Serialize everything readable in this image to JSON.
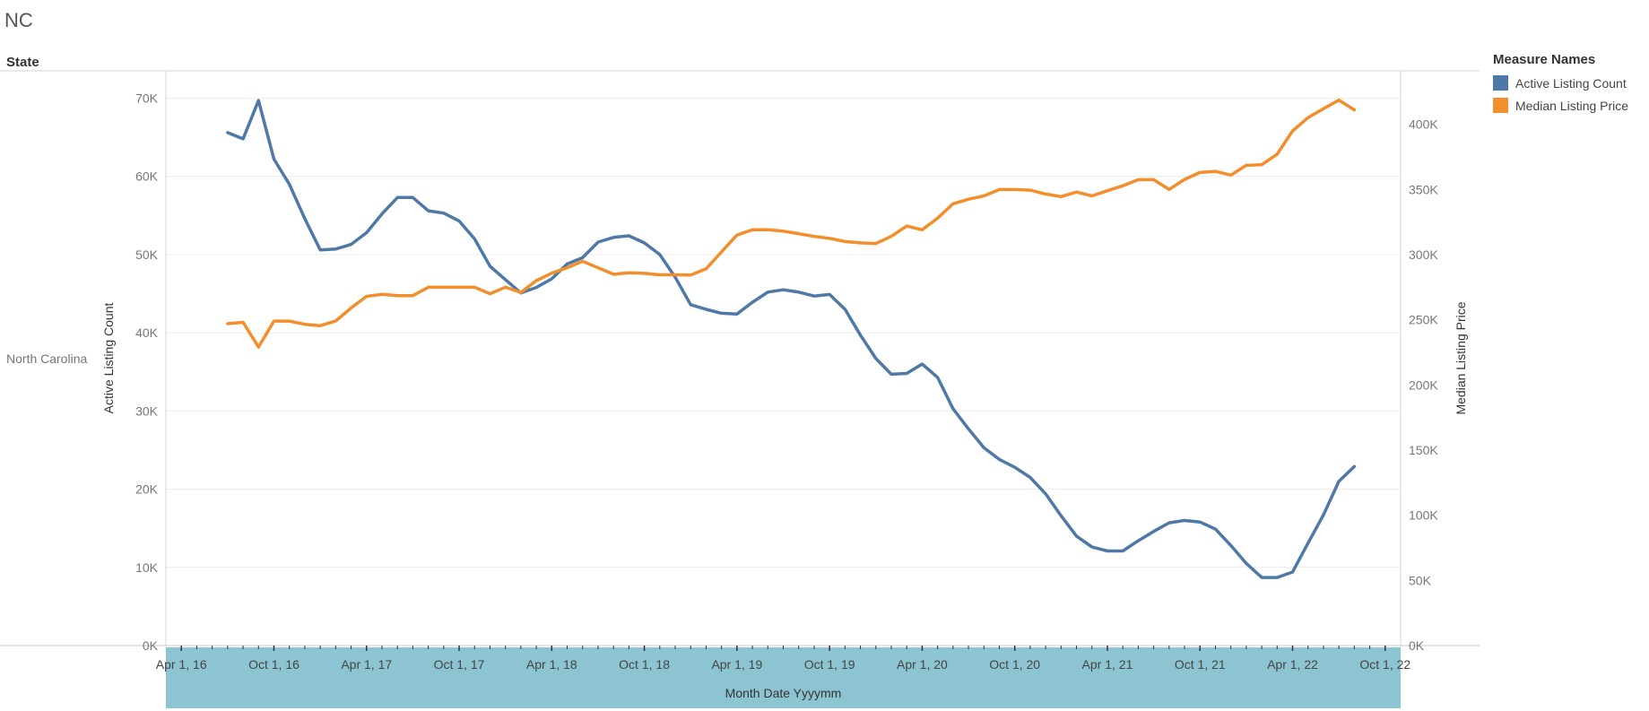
{
  "sheet": {
    "title": "NC",
    "row_header": "State",
    "row_value": "North Carolina"
  },
  "legend": {
    "title": "Measure Names",
    "items": [
      {
        "label": "Active Listing Count",
        "color": "#4e79a7"
      },
      {
        "label": "Median Listing Price",
        "color": "#f28e2b"
      }
    ]
  },
  "axis_band_color": "#8cc4d2",
  "chart_data": {
    "type": "line",
    "xlabel": "Month Date Yyyymm",
    "x": [
      "2016-07",
      "2016-08",
      "2016-09",
      "2016-10",
      "2016-11",
      "2016-12",
      "2017-01",
      "2017-02",
      "2017-03",
      "2017-04",
      "2017-05",
      "2017-06",
      "2017-07",
      "2017-08",
      "2017-09",
      "2017-10",
      "2017-11",
      "2017-12",
      "2018-01",
      "2018-02",
      "2018-03",
      "2018-04",
      "2018-05",
      "2018-06",
      "2018-07",
      "2018-08",
      "2018-09",
      "2018-10",
      "2018-11",
      "2018-12",
      "2019-01",
      "2019-02",
      "2019-03",
      "2019-04",
      "2019-05",
      "2019-06",
      "2019-07",
      "2019-08",
      "2019-09",
      "2019-10",
      "2019-11",
      "2019-12",
      "2020-01",
      "2020-02",
      "2020-03",
      "2020-04",
      "2020-05",
      "2020-06",
      "2020-07",
      "2020-08",
      "2020-09",
      "2020-10",
      "2020-11",
      "2020-12",
      "2021-01",
      "2021-02",
      "2021-03",
      "2021-04",
      "2021-05",
      "2021-06",
      "2021-07",
      "2021-08",
      "2021-09",
      "2021-10",
      "2021-11",
      "2021-12",
      "2022-01",
      "2022-02",
      "2022-03",
      "2022-04",
      "2022-05",
      "2022-06",
      "2022-07",
      "2022-08"
    ],
    "x_ticks": [
      "Apr 1, 16",
      "Oct 1, 16",
      "Apr 1, 17",
      "Oct 1, 17",
      "Apr 1, 18",
      "Oct 1, 18",
      "Apr 1, 19",
      "Oct 1, 19",
      "Apr 1, 20",
      "Oct 1, 20",
      "Apr 1, 21",
      "Oct 1, 21",
      "Apr 1, 22",
      "Oct 1, 22"
    ],
    "x_tick_dates": [
      "2016-04",
      "2016-10",
      "2017-04",
      "2017-10",
      "2018-04",
      "2018-10",
      "2019-04",
      "2019-10",
      "2020-04",
      "2020-10",
      "2021-04",
      "2021-10",
      "2022-04",
      "2022-10"
    ],
    "x_range": [
      "2016-03",
      "2022-11"
    ],
    "series": [
      {
        "name": "Active Listing Count",
        "axis": "left",
        "ylabel": "Active Listing Count",
        "ylim": [
          0,
          73500
        ],
        "ticks": [
          0,
          10000,
          20000,
          30000,
          40000,
          50000,
          60000,
          70000
        ],
        "tick_labels": [
          "0K",
          "10K",
          "20K",
          "30K",
          "40K",
          "50K",
          "60K",
          "70K"
        ],
        "color": "#4e79a7",
        "values": [
          65600,
          64800,
          69700,
          62200,
          59000,
          54600,
          50600,
          50700,
          51300,
          52800,
          55200,
          57300,
          57300,
          55600,
          55300,
          54300,
          52000,
          48500,
          46800,
          45100,
          45800,
          46900,
          48800,
          49600,
          51600,
          52200,
          52400,
          51500,
          50000,
          47100,
          43600,
          43000,
          42500,
          42400,
          43900,
          45200,
          45500,
          45200,
          44700,
          44900,
          43000,
          39700,
          36700,
          34700,
          34800,
          36000,
          34300,
          30300,
          27700,
          25300,
          23800,
          22800,
          21500,
          19400,
          16600,
          14000,
          12600,
          12100,
          12100,
          13400,
          14600,
          15700,
          16000,
          15800,
          14900,
          12800,
          10500,
          8700,
          8700,
          9400,
          13100,
          16700,
          21000,
          22900
        ]
      },
      {
        "name": "Median Listing Price",
        "axis": "right",
        "ylabel": "Median Listing Price",
        "ylim": [
          0,
          441000
        ],
        "ticks": [
          0,
          50000,
          100000,
          150000,
          200000,
          250000,
          300000,
          350000,
          400000
        ],
        "tick_labels": [
          "0K",
          "50K",
          "100K",
          "150K",
          "200K",
          "250K",
          "300K",
          "350K",
          "400K"
        ],
        "color": "#f28e2b",
        "values": [
          247000,
          248000,
          229000,
          249000,
          249000,
          246500,
          245500,
          249000,
          259000,
          268000,
          269500,
          268500,
          268500,
          274900,
          274900,
          274900,
          274900,
          270000,
          275000,
          270900,
          280000,
          285700,
          289900,
          294900,
          289900,
          284900,
          286000,
          285600,
          284500,
          284500,
          284300,
          289000,
          302000,
          315000,
          319000,
          319000,
          318000,
          316000,
          314000,
          312500,
          310000,
          309000,
          308500,
          314000,
          321900,
          319000,
          327900,
          339000,
          342500,
          345000,
          349900,
          349900,
          349400,
          346500,
          344500,
          347999,
          345000,
          349000,
          352800,
          357500,
          357500,
          350000,
          357700,
          363000,
          363900,
          361000,
          368500,
          369000,
          377000,
          394900,
          405000,
          412000,
          418600,
          411000
        ]
      }
    ],
    "grid": true,
    "legend_position": "right"
  }
}
